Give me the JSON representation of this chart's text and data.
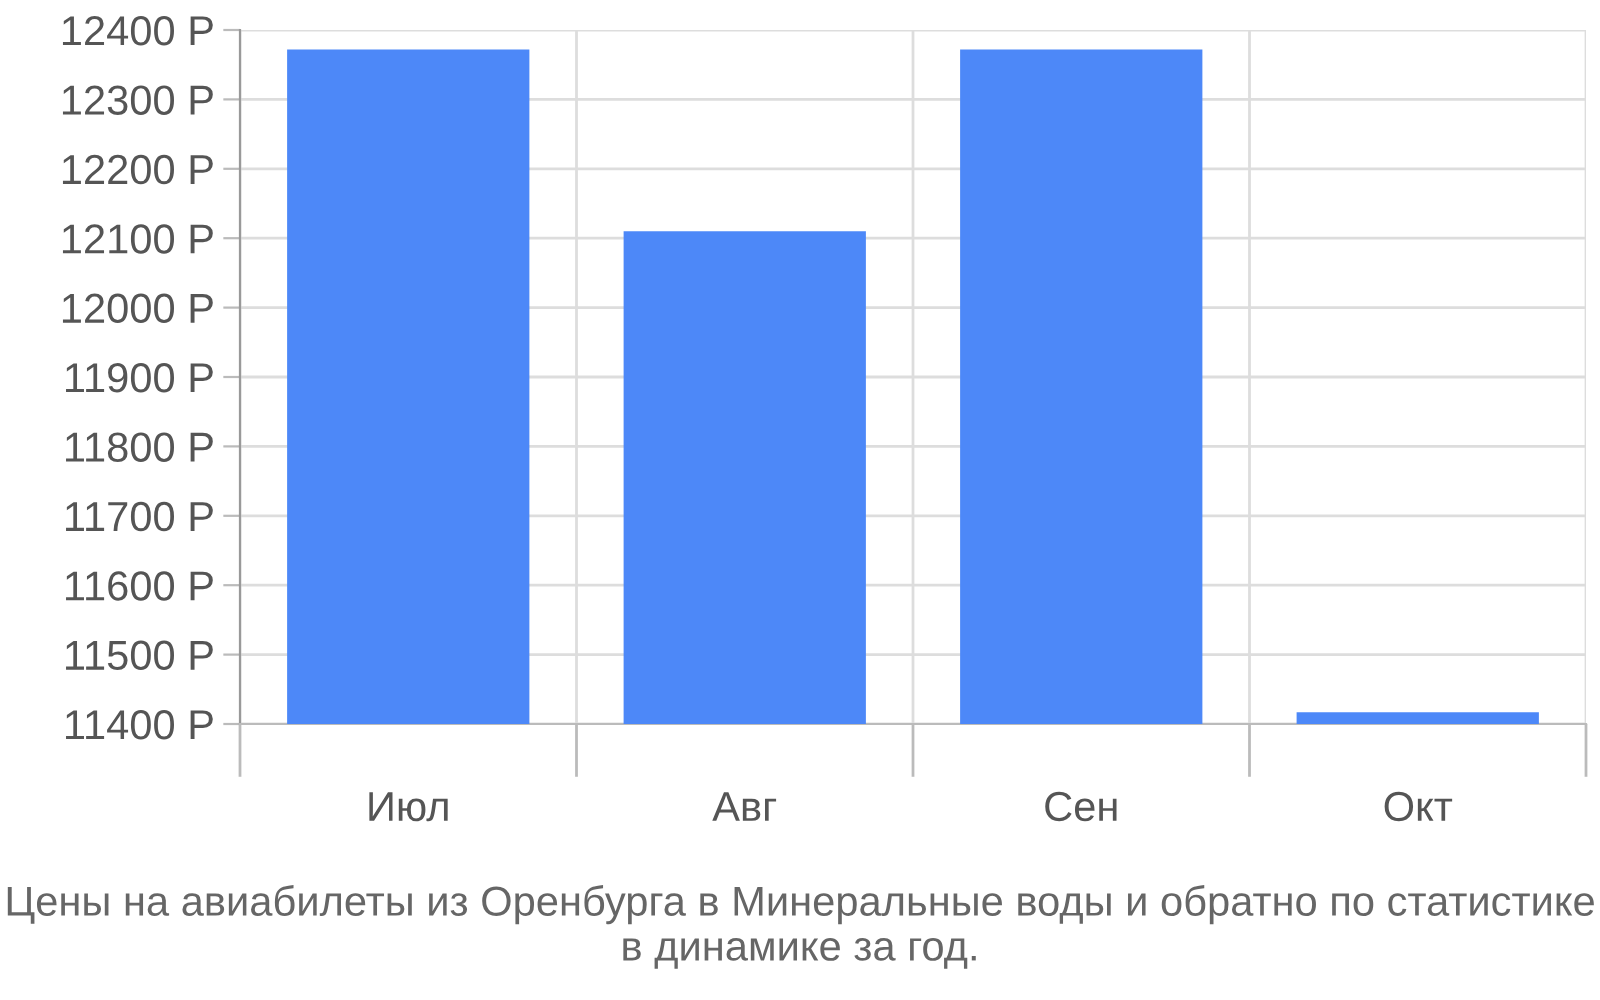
{
  "chart_data": {
    "type": "bar",
    "categories": [
      "Июл",
      "Авг",
      "Сен",
      "Окт"
    ],
    "values": [
      12372,
      12110,
      12372,
      11417
    ],
    "color": "#4d88f8",
    "ylim": [
      11400,
      12400
    ],
    "yticks": [
      {
        "value": 11400,
        "label": "11400 Р"
      },
      {
        "value": 11500,
        "label": "11500 Р"
      },
      {
        "value": 11600,
        "label": "11600 Р"
      },
      {
        "value": 11700,
        "label": "11700 Р"
      },
      {
        "value": 11800,
        "label": "11800 Р"
      },
      {
        "value": 11900,
        "label": "11900 Р"
      },
      {
        "value": 12000,
        "label": "12000 Р"
      },
      {
        "value": 12100,
        "label": "12100 Р"
      },
      {
        "value": 12200,
        "label": "12200 Р"
      },
      {
        "value": 12300,
        "label": "12300 Р"
      },
      {
        "value": 12400,
        "label": "12400 Р"
      }
    ],
    "grid": true,
    "annotations": [
      "Цены на авиабилеты из Оренбурга в Минеральные воды и обратно по статистике в динамике за год."
    ]
  }
}
